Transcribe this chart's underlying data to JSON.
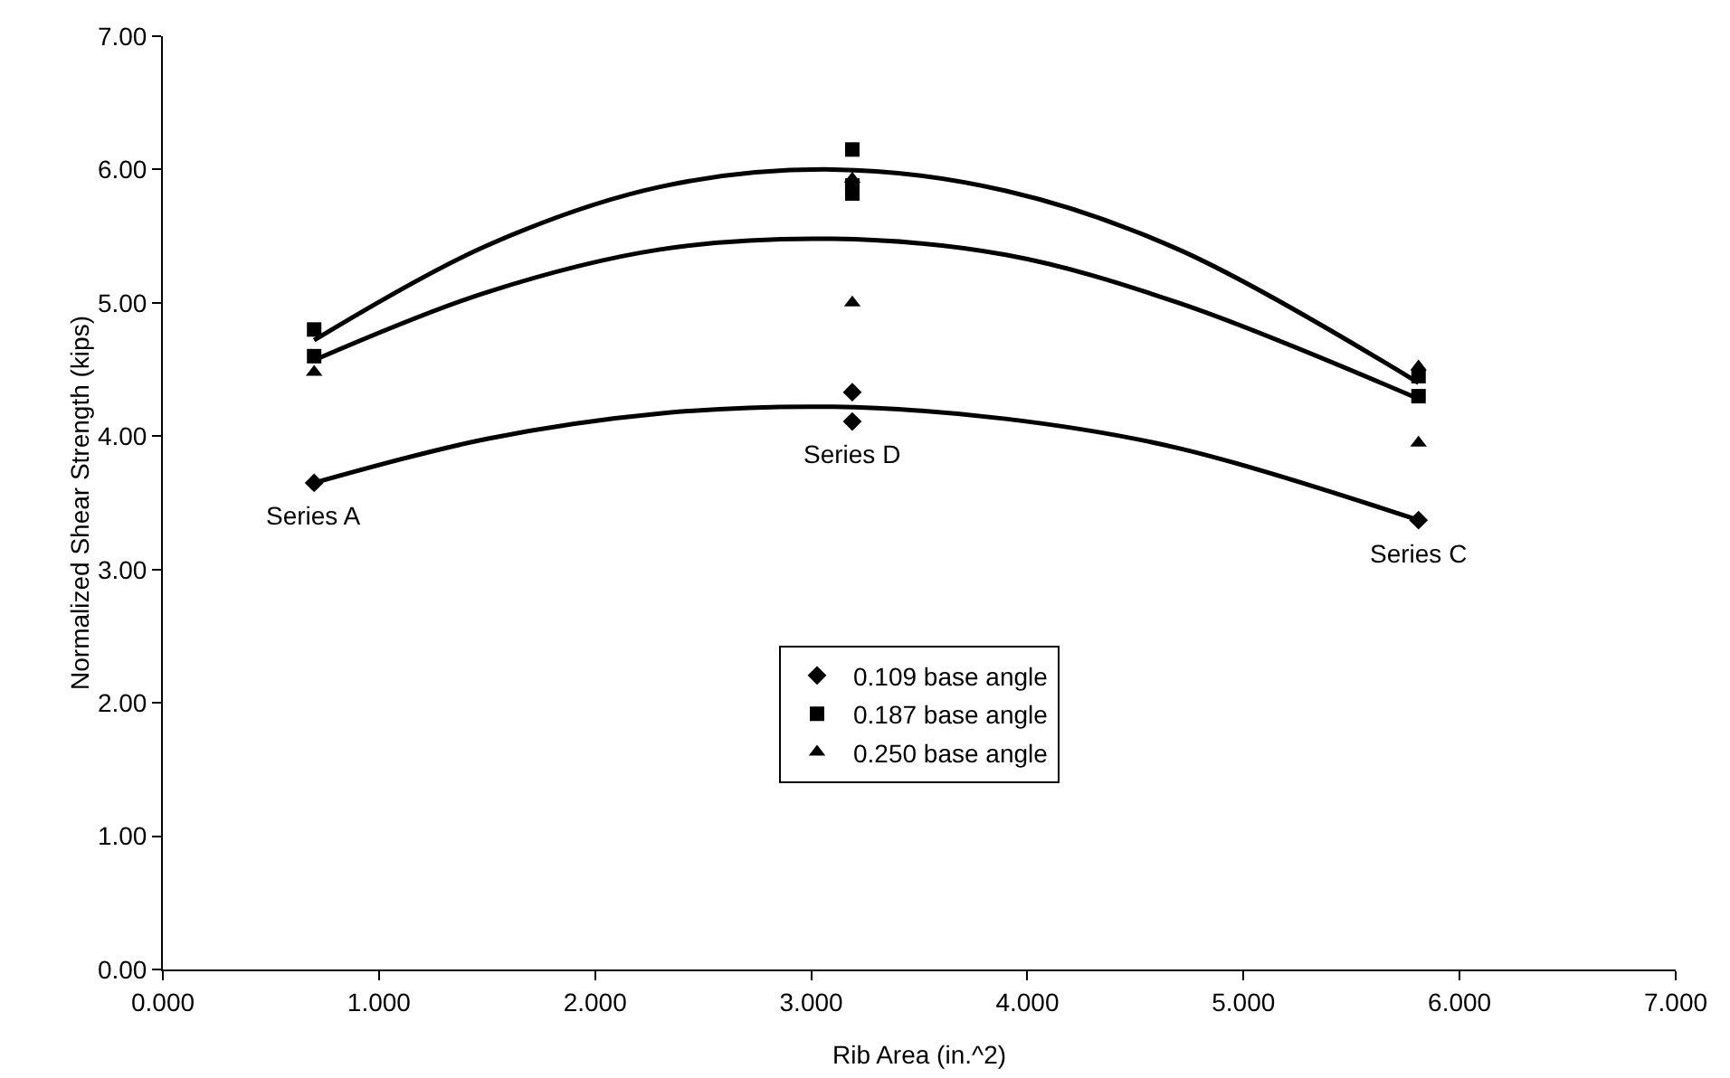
{
  "chart_data": {
    "type": "scatter",
    "xlabel": "Rib Area (in.^2)",
    "ylabel": "Normalized Shear Strength (kips)",
    "xlim": [
      0,
      7
    ],
    "xticks": [
      {
        "value": 0,
        "label": "0.000"
      },
      {
        "value": 1,
        "label": "1.000"
      },
      {
        "value": 2,
        "label": "2.000"
      },
      {
        "value": 3,
        "label": "3.000"
      },
      {
        "value": 4,
        "label": "4.000"
      },
      {
        "value": 5,
        "label": "5.000"
      },
      {
        "value": 6,
        "label": "6.000"
      },
      {
        "value": 7,
        "label": "7.000"
      }
    ],
    "ylim": [
      0,
      7
    ],
    "yticks": [
      {
        "value": 0,
        "label": "0.00"
      },
      {
        "value": 1,
        "label": "1.00"
      },
      {
        "value": 2,
        "label": "2.00"
      },
      {
        "value": 3,
        "label": "3.00"
      },
      {
        "value": 4,
        "label": "4.00"
      },
      {
        "value": 5,
        "label": "5.00"
      },
      {
        "value": 6,
        "label": "6.00"
      },
      {
        "value": 7,
        "label": "7.00"
      }
    ],
    "grid": false,
    "legend": "bottom",
    "series": [
      {
        "name": "0.109 base angle",
        "color": "#000000",
        "marker": "diamond",
        "x": [
          0.7,
          3.19,
          3.19,
          5.81
        ],
        "values": [
          3.65,
          4.33,
          4.11,
          3.37
        ]
      },
      {
        "name": "0.187 base angle",
        "color": "#000000",
        "marker": "square",
        "x": [
          0.7,
          0.7,
          3.19,
          3.19,
          3.19,
          5.81,
          5.81
        ],
        "values": [
          4.8,
          4.6,
          6.15,
          5.88,
          5.82,
          4.45,
          4.3
        ]
      },
      {
        "name": "0.250 base angle",
        "color": "#000000",
        "marker": "triangle",
        "x": [
          0.7,
          3.19,
          3.19,
          5.81,
          5.81
        ],
        "values": [
          4.48,
          5.93,
          5.0,
          4.52,
          3.95
        ]
      },
      {
        "type": "line",
        "color": "#000000",
        "marker": "none",
        "x": [
          0.7,
          1.5,
          2.3,
          3.1,
          3.9,
          4.7,
          5.81
        ],
        "values": [
          4.72,
          5.43,
          5.87,
          6.0,
          5.84,
          5.4,
          4.4
        ]
      },
      {
        "type": "line",
        "color": "#000000",
        "marker": "none",
        "x": [
          0.7,
          1.5,
          2.3,
          3.1,
          3.9,
          4.7,
          5.81
        ],
        "values": [
          4.57,
          5.08,
          5.4,
          5.48,
          5.36,
          5.0,
          4.28
        ]
      },
      {
        "type": "line",
        "color": "#000000",
        "marker": "none",
        "x": [
          0.7,
          1.5,
          2.3,
          3.1,
          3.9,
          4.7,
          5.81
        ],
        "values": [
          3.65,
          3.98,
          4.17,
          4.22,
          4.13,
          3.91,
          3.37
        ]
      }
    ],
    "annotations": [
      {
        "text": "Series A",
        "x": 0.7,
        "y": 3.65
      },
      {
        "text": "Series D",
        "x": 3.19,
        "y": 4.11
      },
      {
        "text": "Series C",
        "x": 5.81,
        "y": 3.37
      }
    ]
  }
}
